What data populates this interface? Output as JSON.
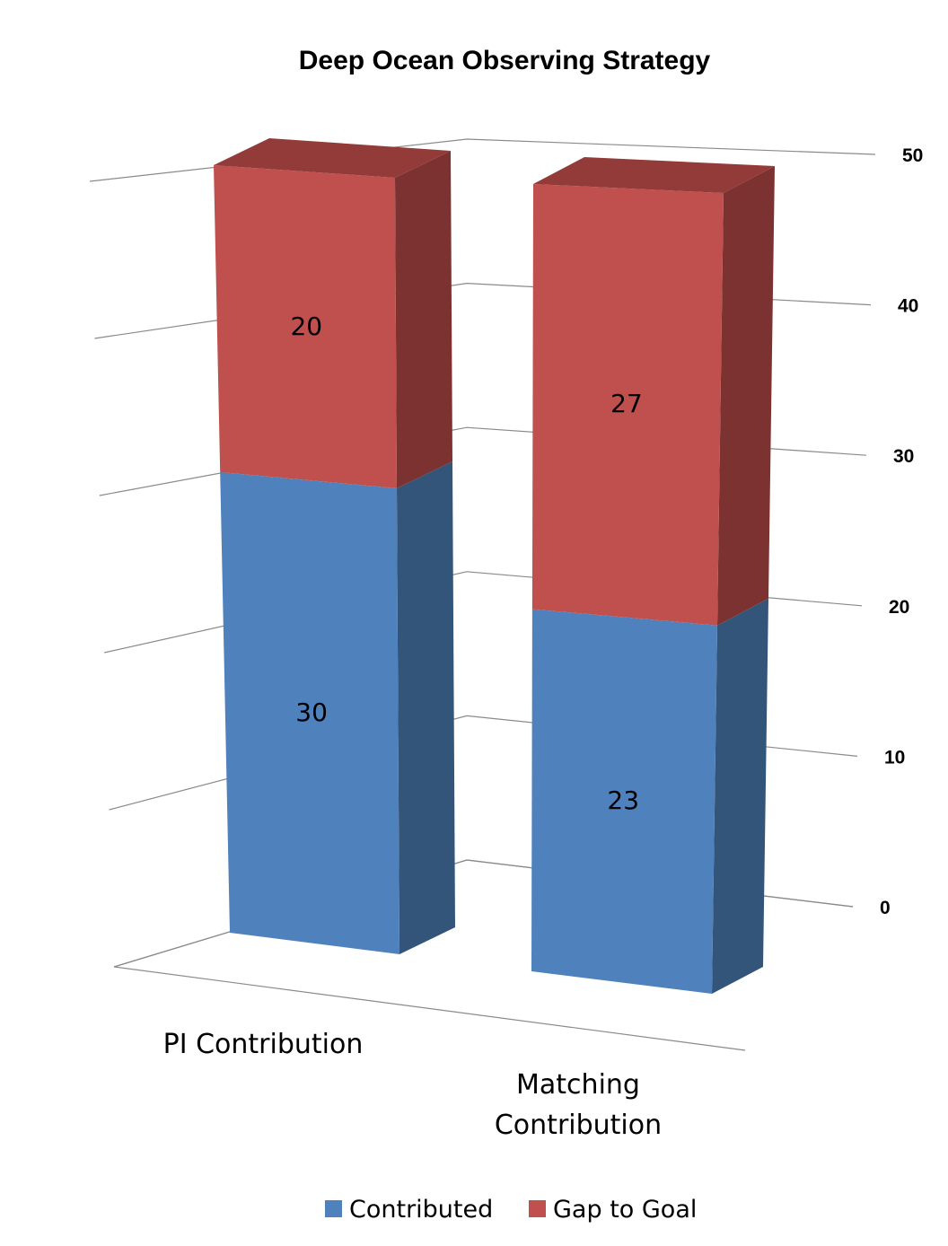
{
  "chart_data": {
    "type": "bar",
    "stacked": true,
    "three_d": true,
    "title": "Deep Ocean Observing Strategy",
    "categories": [
      "PI Contribution",
      "Matching\nContribution"
    ],
    "series": [
      {
        "name": "Contributed",
        "values": [
          30,
          23
        ],
        "color": "#4f81bd"
      },
      {
        "name": "Gap to Goal",
        "values": [
          20,
          27
        ],
        "color": "#c0504d"
      }
    ],
    "ylim": [
      0,
      50
    ],
    "yticks": [
      0,
      10,
      20,
      30,
      40,
      50
    ],
    "grid": true,
    "legend_position": "bottom"
  },
  "colors": {
    "contributed_front": "#4f81bd",
    "contributed_side": "#33557a",
    "contributed_top": "#3f6896",
    "gap_front": "#c0504d",
    "gap_side": "#7d3232",
    "gap_top": "#923b39"
  }
}
